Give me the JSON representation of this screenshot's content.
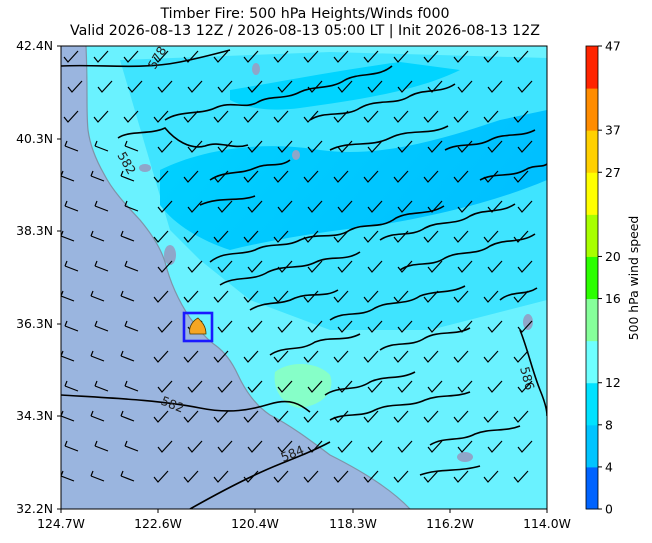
{
  "title": {
    "line1": "Timber Fire: 500 hPa Heights/Winds f000",
    "line2": "Valid 2026-08-13 12Z / 2026-08-13 05:00 LT | Init 2026-08-13 12Z"
  },
  "map": {
    "lat_ticks": [
      "42.4N",
      "40.3N",
      "38.3N",
      "36.3N",
      "34.3N",
      "32.2N"
    ],
    "lon_ticks": [
      "124.7W",
      "122.6W",
      "120.4W",
      "118.3W",
      "116.2W",
      "114.0W"
    ],
    "lat_range": [
      32.2,
      42.4
    ],
    "lon_range": [
      -124.7,
      -114.0
    ],
    "fire_box": {
      "label": "Timber Fire",
      "lat": 36.2,
      "lon": -121.45,
      "color": "#1a1aff",
      "marker_color": "#f5a623"
    },
    "contour_labels": [
      "578",
      "582",
      "582",
      "584",
      "586"
    ],
    "colors": {
      "ocean": "#9ab5df",
      "land_low_wind": "#6af5ff",
      "land_mid_wind": "#00dcff",
      "land_high_wind": "#00c4ff",
      "contour": "#000000"
    }
  },
  "colorbar": {
    "label": "500 hPa wind speed",
    "ticks": [
      "0",
      "4",
      "8",
      "12",
      "16",
      "20",
      "27",
      "37",
      "47"
    ],
    "levels": [
      {
        "color": "#0063ff"
      },
      {
        "color": "#00c4ff"
      },
      {
        "color": "#00e2ff"
      },
      {
        "color": "#6effff"
      },
      {
        "color": "#86ff9a"
      },
      {
        "color": "#2cff00"
      },
      {
        "color": "#a8ff00"
      },
      {
        "color": "#ffff00"
      },
      {
        "color": "#ffd000"
      },
      {
        "color": "#ff8c00"
      },
      {
        "color": "#ff2400"
      }
    ]
  }
}
